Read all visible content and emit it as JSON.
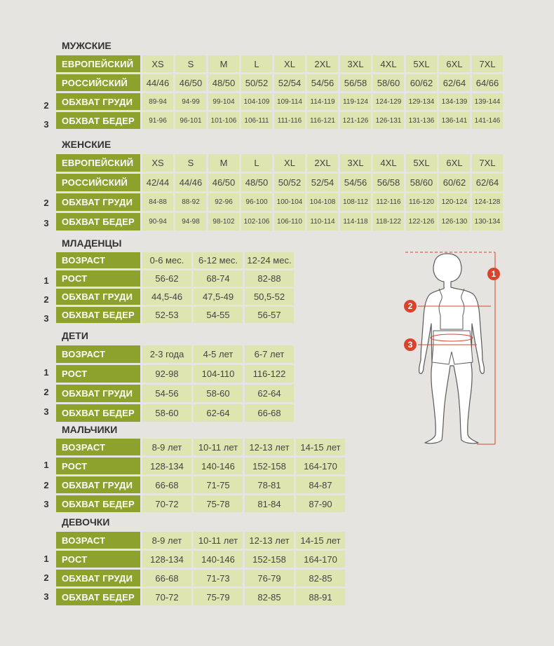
{
  "labels": {
    "european": "ЕВРОПЕЙСКИЙ",
    "russian": "РОССИЙСКИЙ",
    "chest": "ОБХВАТ ГРУДИ",
    "hips": "ОБХВАТ БЕДЕР",
    "age": "ВОЗРАСТ",
    "height": "РОСТ"
  },
  "markers": {
    "height": "1",
    "chest": "2",
    "hips": "3"
  },
  "men": {
    "title": "МУЖСКИЕ",
    "european": [
      "XS",
      "S",
      "M",
      "L",
      "XL",
      "2XL",
      "3XL",
      "4XL",
      "5XL",
      "6XL",
      "7XL"
    ],
    "russian": [
      "44/46",
      "46/50",
      "48/50",
      "50/52",
      "52/54",
      "54/56",
      "56/58",
      "58/60",
      "60/62",
      "62/64",
      "64/66"
    ],
    "chest": [
      "89-94",
      "94-99",
      "99-104",
      "104-109",
      "109-114",
      "114-119",
      "119-124",
      "124-129",
      "129-134",
      "134-139",
      "139-144"
    ],
    "hips": [
      "91-96",
      "96-101",
      "101-106",
      "106-111",
      "111-116",
      "116-121",
      "121-126",
      "126-131",
      "131-136",
      "136-141",
      "141-146"
    ]
  },
  "women": {
    "title": "ЖЕНСКИЕ",
    "european": [
      "XS",
      "S",
      "M",
      "L",
      "XL",
      "2XL",
      "3XL",
      "4XL",
      "5XL",
      "6XL",
      "7XL"
    ],
    "russian": [
      "42/44",
      "44/46",
      "46/50",
      "48/50",
      "50/52",
      "52/54",
      "54/56",
      "56/58",
      "58/60",
      "60/62",
      "62/64"
    ],
    "chest": [
      "84-88",
      "88-92",
      "92-96",
      "96-100",
      "100-104",
      "104-108",
      "108-112",
      "112-116",
      "116-120",
      "120-124",
      "124-128"
    ],
    "hips": [
      "90-94",
      "94-98",
      "98-102",
      "102-106",
      "106-110",
      "110-114",
      "114-118",
      "118-122",
      "122-126",
      "126-130",
      "130-134"
    ]
  },
  "infants": {
    "title": "МЛАДЕНЦЫ",
    "age": [
      "0-6 мес.",
      "6-12 мес.",
      "12-24 мес."
    ],
    "height": [
      "56-62",
      "68-74",
      "82-88"
    ],
    "chest": [
      "44,5-46",
      "47,5-49",
      "50,5-52"
    ],
    "hips": [
      "52-53",
      "54-55",
      "56-57"
    ]
  },
  "kids": {
    "title": "ДЕТИ",
    "age": [
      "2-3 года",
      "4-5 лет",
      "6-7 лет"
    ],
    "height": [
      "92-98",
      "104-110",
      "116-122"
    ],
    "chest": [
      "54-56",
      "58-60",
      "62-64"
    ],
    "hips": [
      "58-60",
      "62-64",
      "66-68"
    ]
  },
  "boys": {
    "title": "МАЛЬЧИКИ",
    "age": [
      "8-9 лет",
      "10-11 лет",
      "12-13 лет",
      "14-15 лет"
    ],
    "height": [
      "128-134",
      "140-146",
      "152-158",
      "164-170"
    ],
    "chest": [
      "66-68",
      "71-75",
      "78-81",
      "84-87"
    ],
    "hips": [
      "70-72",
      "75-78",
      "81-84",
      "87-90"
    ]
  },
  "girls": {
    "title": "ДЕВОЧКИ",
    "age": [
      "8-9 лет",
      "10-11 лет",
      "12-13 лет",
      "14-15 лет"
    ],
    "height": [
      "128-134",
      "140-146",
      "152-158",
      "164-170"
    ],
    "chest": [
      "66-68",
      "71-73",
      "76-79",
      "82-85"
    ],
    "hips": [
      "70-72",
      "75-79",
      "82-85",
      "88-91"
    ]
  },
  "colors": {
    "label_bg": "#8ca22c",
    "cell_bg": "#dfe5b0",
    "page_bg": "#e6e4e1",
    "marker_red": "#d9452c"
  },
  "figure_icon": "body-measurement-figure-icon"
}
